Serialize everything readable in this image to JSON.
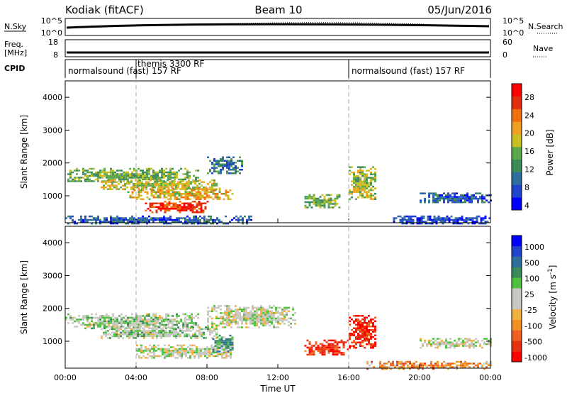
{
  "header": {
    "title": "Kodiak (fitACF)",
    "beam": "Beam 10",
    "date": "05/Jun/2016"
  },
  "summary_panels": {
    "nsky_label": "N.Sky",
    "nsearch_label": "N.Search",
    "nsky_ticks": [
      "10^5",
      "10^0"
    ],
    "nsky_right_ticks": [
      "10^5",
      "10^0"
    ],
    "freq_label": [
      "Freq.",
      "[MHz]"
    ],
    "freq_ticks": [
      "18",
      "8"
    ],
    "nave_label": "Nave",
    "nave_ticks": [
      "60",
      "0"
    ],
    "cpid_label": "CPID",
    "cpid_segments": [
      {
        "label": "normalsound (fast) 157 RF",
        "start_hour": 0
      },
      {
        "label": "themis 3300 RF",
        "start_hour": 4
      },
      {
        "label": "normalsound (fast) 157 RF",
        "start_hour": 16
      }
    ]
  },
  "chart_data": [
    {
      "type": "heatmap",
      "name": "power",
      "xlabel": "Time UT",
      "ylabel": "Slant Range [km]",
      "xlim": [
        0,
        24
      ],
      "ylim": [
        180,
        4500
      ],
      "x_ticks": [
        "00:00",
        "04:00",
        "08:00",
        "12:00",
        "16:00",
        "20:00",
        "00:00"
      ],
      "y_ticks": [
        1000,
        2000,
        3000,
        4000
      ],
      "colorbar_label": "Power [dB]",
      "colorbar_ticks": [
        "28",
        "24",
        "20",
        "16",
        "12",
        "8",
        "4"
      ],
      "colorbar_colors": [
        "#0000ff",
        "#2244cc",
        "#2f6f9f",
        "#3a8a5a",
        "#5aa84a",
        "#c8c020",
        "#f0a020",
        "#f07010",
        "#e03010",
        "#ff0000"
      ],
      "regions": [
        {
          "t0": 0.0,
          "t1": 10.5,
          "r0": 180,
          "r1": 400,
          "level": 0.2
        },
        {
          "t0": 0.0,
          "t1": 7.5,
          "r0": 1450,
          "r1": 1850,
          "level": 0.45
        },
        {
          "t0": 2.0,
          "t1": 8.5,
          "r0": 1200,
          "r1": 1500,
          "level": 0.55
        },
        {
          "t0": 3.5,
          "t1": 9.5,
          "r0": 900,
          "r1": 1250,
          "level": 0.6
        },
        {
          "t0": 4.5,
          "t1": 8.0,
          "r0": 500,
          "r1": 850,
          "level": 0.85
        },
        {
          "t0": 8.0,
          "t1": 10.0,
          "r0": 1700,
          "r1": 2200,
          "level": 0.3
        },
        {
          "t0": 13.5,
          "t1": 15.5,
          "r0": 650,
          "r1": 1050,
          "level": 0.45
        },
        {
          "t0": 16.0,
          "t1": 17.5,
          "r0": 900,
          "r1": 1900,
          "level": 0.5
        },
        {
          "t0": 18.5,
          "t1": 24.0,
          "r0": 180,
          "r1": 400,
          "level": 0.15
        },
        {
          "t0": 20.0,
          "t1": 24.0,
          "r0": 800,
          "r1": 1100,
          "level": 0.2
        }
      ]
    },
    {
      "type": "heatmap",
      "name": "velocity",
      "xlabel": "Time UT",
      "ylabel": "Slant Range [km]",
      "xlim": [
        0,
        24
      ],
      "ylim": [
        180,
        4500
      ],
      "x_ticks": [
        "00:00",
        "04:00",
        "08:00",
        "12:00",
        "16:00",
        "20:00",
        "00:00"
      ],
      "y_ticks": [
        1000,
        2000,
        3000,
        4000
      ],
      "colorbar_label": "Velocity [m s^-1]",
      "colorbar_ticks": [
        "1000",
        "500",
        "100",
        "25",
        "-25",
        "-100",
        "-500",
        "-1000"
      ],
      "colorbar_colors": [
        "#ff0000",
        "#e83010",
        "#f06020",
        "#f09020",
        "#f0b040",
        "#c8c8c0",
        "#c8c8c0",
        "#50c040",
        "#3a8a5a",
        "#2f6f9f",
        "#2244cc",
        "#0000ff"
      ],
      "regions": [
        {
          "t0": 0.0,
          "t1": 7.5,
          "r0": 1400,
          "r1": 1850,
          "level": 0.55
        },
        {
          "t0": 2.0,
          "t1": 8.5,
          "r0": 1100,
          "r1": 1450,
          "level": 0.55
        },
        {
          "t0": 4.0,
          "t1": 9.5,
          "r0": 500,
          "r1": 900,
          "level": 0.5
        },
        {
          "t0": 8.0,
          "t1": 13.0,
          "r0": 1450,
          "r1": 2100,
          "level": 0.5
        },
        {
          "t0": 8.3,
          "t1": 9.5,
          "r0": 700,
          "r1": 1200,
          "level": 0.68
        },
        {
          "t0": 13.5,
          "t1": 16.0,
          "r0": 600,
          "r1": 1050,
          "level": 0.12
        },
        {
          "t0": 16.0,
          "t1": 17.5,
          "r0": 800,
          "r1": 1800,
          "level": 0.1
        },
        {
          "t0": 17.0,
          "t1": 24.0,
          "r0": 180,
          "r1": 400,
          "level": 0.3
        },
        {
          "t0": 20.0,
          "t1": 24.0,
          "r0": 800,
          "r1": 1100,
          "level": 0.5
        }
      ]
    }
  ]
}
